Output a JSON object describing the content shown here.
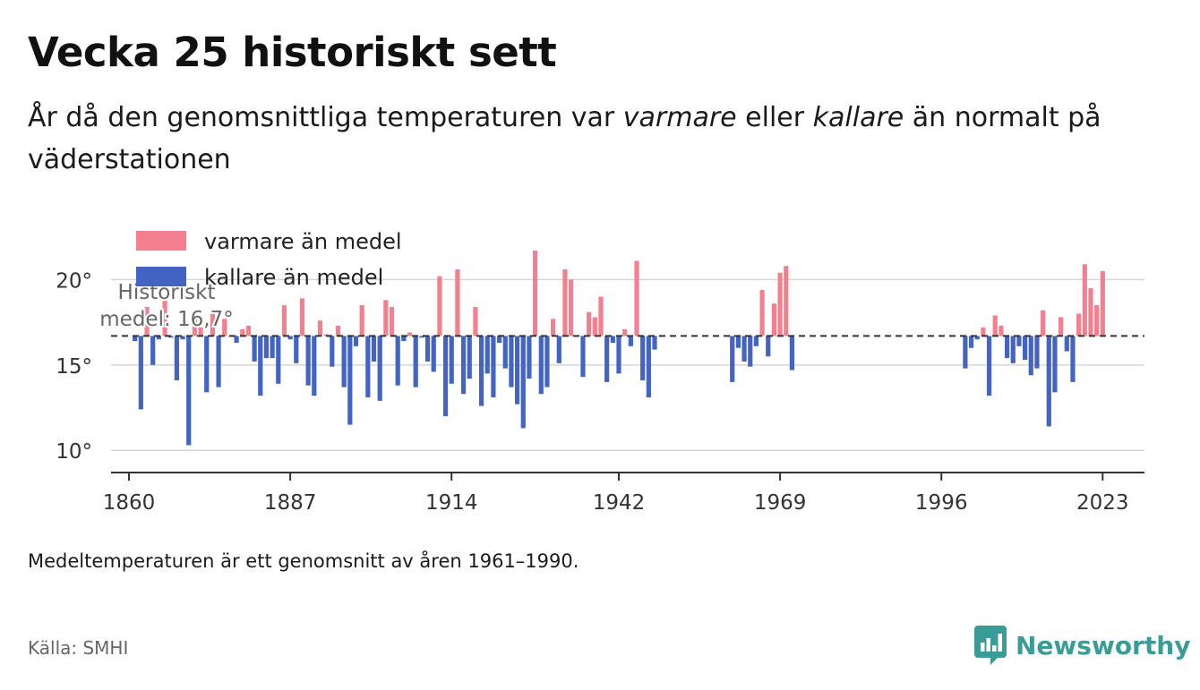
{
  "title": "Vecka 25 historiskt sett",
  "subtitle": {
    "part1": "År då den genomsnittliga temperaturen var ",
    "warm_word": "varmare",
    "part2": " eller ",
    "cold_word": "kallare",
    "part3": " än normalt på väderstationen"
  },
  "footnote": "Medeltemperaturen är ett genomsnitt av åren 1961–1990.",
  "source": "Källa: SMHI",
  "logo": {
    "text": "Newsworthy",
    "icon": "newsworthy-chart-icon",
    "color": "#3a9c97"
  },
  "colors": {
    "warm": "#f4808f",
    "cold": "#4464c4",
    "grid": "#d6d6d6",
    "mean_line": "#333333"
  },
  "chart_data": {
    "type": "bar",
    "baseline": 16.7,
    "baseline_label": [
      "Historiskt",
      "medel: 16,7°"
    ],
    "xlim": [
      1857,
      2030
    ],
    "ylim": [
      8.7,
      21.7
    ],
    "yticks": [
      10,
      15,
      20
    ],
    "ytick_labels": [
      "10°",
      "15°",
      "20°"
    ],
    "xticks": [
      1860,
      1887,
      1914,
      1942,
      1969,
      1996,
      2023
    ],
    "legend": [
      {
        "key": "warm",
        "label": "varmare än medel"
      },
      {
        "key": "cold",
        "label": "kallare än medel"
      }
    ],
    "legend_position": "top-left",
    "grid": true,
    "x": [
      1861,
      1862,
      1863,
      1864,
      1865,
      1866,
      1867,
      1868,
      1869,
      1870,
      1871,
      1872,
      1873,
      1874,
      1875,
      1876,
      1877,
      1878,
      1879,
      1880,
      1881,
      1882,
      1883,
      1884,
      1885,
      1886,
      1887,
      1888,
      1889,
      1890,
      1891,
      1892,
      1893,
      1894,
      1895,
      1896,
      1897,
      1898,
      1899,
      1900,
      1901,
      1902,
      1903,
      1904,
      1905,
      1906,
      1907,
      1908,
      1909,
      1910,
      1911,
      1912,
      1913,
      1914,
      1915,
      1916,
      1917,
      1918,
      1919,
      1920,
      1921,
      1922,
      1923,
      1924,
      1925,
      1926,
      1927,
      1928,
      1929,
      1930,
      1931,
      1932,
      1933,
      1934,
      1935,
      1936,
      1937,
      1938,
      1939,
      1940,
      1941,
      1942,
      1943,
      1944,
      1945,
      1946,
      1947,
      1948,
      1949,
      1961,
      1962,
      1963,
      1964,
      1965,
      1966,
      1967,
      1968,
      1969,
      1970,
      1971,
      2000,
      2001,
      2002,
      2003,
      2004,
      2005,
      2006,
      2007,
      2008,
      2009,
      2010,
      2011,
      2012,
      2013,
      2014,
      2015,
      2016,
      2017,
      2018,
      2019,
      2020,
      2021,
      2022,
      2023
    ],
    "values": [
      16.4,
      12.4,
      18.4,
      15.0,
      16.5,
      18.9,
      16.6,
      14.1,
      16.5,
      10.3,
      17.9,
      17.2,
      13.4,
      18.3,
      13.7,
      17.7,
      16.7,
      16.3,
      17.1,
      17.3,
      15.2,
      13.2,
      15.4,
      15.4,
      13.9,
      18.5,
      16.5,
      15.1,
      18.9,
      13.8,
      13.2,
      17.6,
      16.8,
      14.9,
      17.3,
      13.7,
      11.5,
      16.1,
      18.5,
      13.1,
      15.2,
      12.9,
      18.8,
      18.4,
      13.8,
      16.4,
      16.9,
      13.7,
      16.6,
      15.2,
      14.6,
      20.2,
      12.0,
      13.9,
      20.6,
      13.3,
      14.2,
      18.4,
      12.6,
      14.5,
      13.1,
      16.3,
      14.8,
      13.7,
      12.7,
      11.3,
      14.2,
      21.7,
      13.3,
      13.7,
      17.7,
      15.1,
      20.6,
      20.0,
      16.7,
      14.3,
      18.1,
      17.8,
      19.0,
      14.0,
      16.3,
      14.5,
      17.1,
      16.1,
      21.1,
      14.1,
      13.1,
      15.9,
      16.7,
      14.0,
      16.0,
      15.2,
      14.9,
      16.1,
      19.4,
      15.5,
      18.6,
      20.4,
      20.8,
      14.7,
      14.8,
      16.0,
      16.5,
      17.2,
      13.2,
      17.9,
      17.3,
      15.4,
      15.1,
      16.1,
      15.3,
      14.4,
      14.8,
      18.2,
      11.4,
      13.4,
      17.8,
      15.8,
      14.0,
      18.0,
      20.9,
      19.5,
      18.5,
      20.5
    ]
  }
}
